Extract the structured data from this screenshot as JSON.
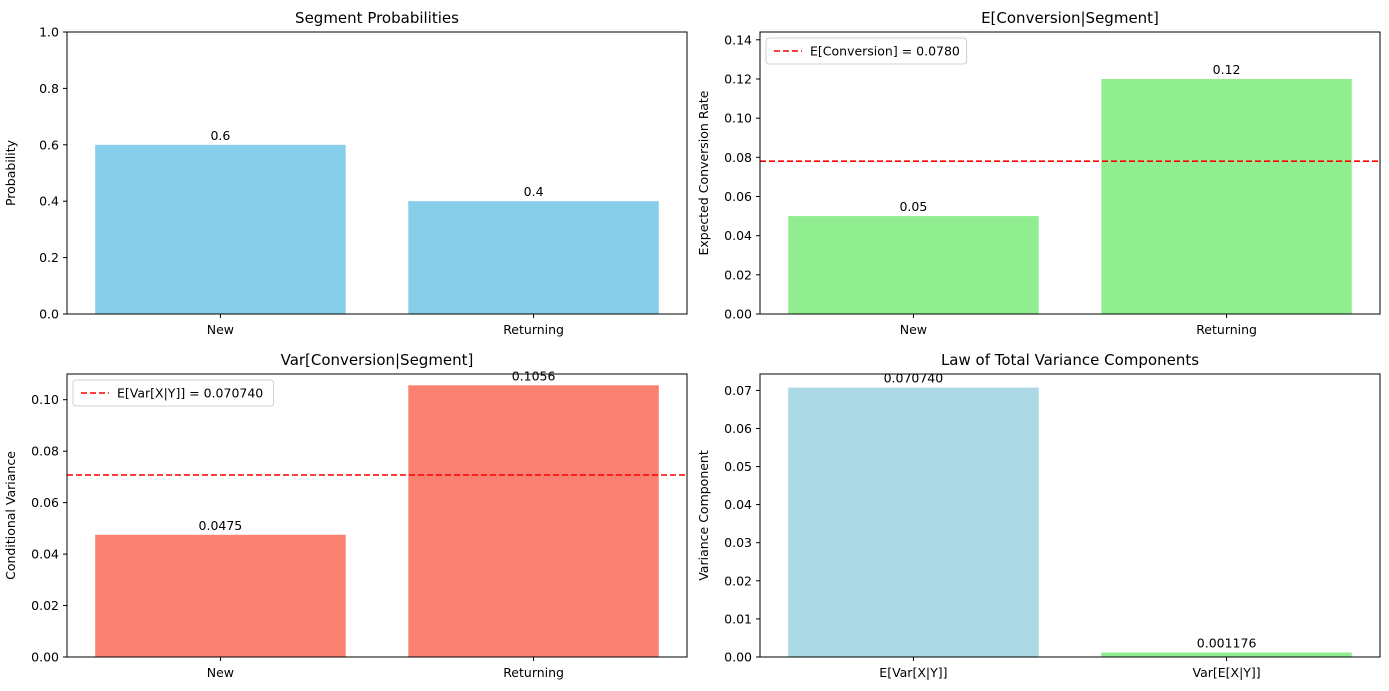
{
  "chart_data": [
    {
      "type": "bar",
      "title": "Segment Probabilities",
      "xlabel": "",
      "ylabel": "Probability",
      "categories": [
        "New",
        "Returning"
      ],
      "values": [
        0.6,
        0.4
      ],
      "value_labels": [
        "0.6",
        "0.4"
      ],
      "colors": [
        "#87ceeb",
        "#87ceeb"
      ],
      "ylim": [
        0,
        1.0
      ],
      "yticks": [
        0,
        0.2,
        0.4,
        0.6,
        0.8,
        1.0
      ],
      "ytick_labels": [
        "0.0",
        "0.2",
        "0.4",
        "0.6",
        "0.8",
        "1.0"
      ],
      "grid": false
    },
    {
      "type": "bar",
      "title": "E[Conversion|Segment]",
      "xlabel": "",
      "ylabel": "Expected Conversion Rate",
      "categories": [
        "New",
        "Returning"
      ],
      "values": [
        0.05,
        0.12
      ],
      "value_labels": [
        "0.05",
        "0.12"
      ],
      "colors": [
        "#90ee90",
        "#90ee90"
      ],
      "ylim": [
        0,
        0.144
      ],
      "yticks": [
        0,
        0.02,
        0.04,
        0.06,
        0.08,
        0.1,
        0.12,
        0.14
      ],
      "ytick_labels": [
        "0.00",
        "0.02",
        "0.04",
        "0.06",
        "0.08",
        "0.10",
        "0.12",
        "0.14"
      ],
      "hline": {
        "value": 0.078,
        "color": "#ff0000",
        "label": "E[Conversion] = 0.0780"
      },
      "legend_position": "upper-left",
      "grid": false
    },
    {
      "type": "bar",
      "title": "Var[Conversion|Segment]",
      "xlabel": "",
      "ylabel": "Conditional Variance",
      "categories": [
        "New",
        "Returning"
      ],
      "values": [
        0.0475,
        0.1056
      ],
      "value_labels": [
        "0.0475",
        "0.1056"
      ],
      "colors": [
        "#fa8072",
        "#fa8072"
      ],
      "ylim": [
        0,
        0.11
      ],
      "yticks": [
        0,
        0.02,
        0.04,
        0.06,
        0.08,
        0.1
      ],
      "ytick_labels": [
        "0.00",
        "0.02",
        "0.04",
        "0.06",
        "0.08",
        "0.10"
      ],
      "hline": {
        "value": 0.07074,
        "color": "#ff0000",
        "label": "E[Var[X|Y]] = 0.070740"
      },
      "legend_position": "upper-left",
      "grid": false
    },
    {
      "type": "bar",
      "title": "Law of Total Variance Components",
      "xlabel": "",
      "ylabel": "Variance Component",
      "categories": [
        "E[Var[X|Y]]",
        "Var[E[X|Y]]"
      ],
      "values": [
        0.07074,
        0.001176
      ],
      "value_labels": [
        "0.070740",
        "0.001176"
      ],
      "colors": [
        "#add8e6",
        "#90ee90"
      ],
      "ylim": [
        0,
        0.0743
      ],
      "yticks": [
        0,
        0.01,
        0.02,
        0.03,
        0.04,
        0.05,
        0.06,
        0.07
      ],
      "ytick_labels": [
        "0.00",
        "0.01",
        "0.02",
        "0.03",
        "0.04",
        "0.05",
        "0.06",
        "0.07"
      ],
      "grid": false
    }
  ]
}
